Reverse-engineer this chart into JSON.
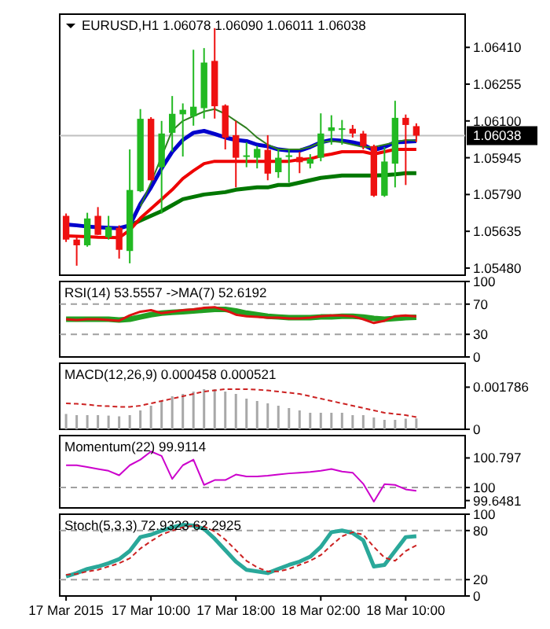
{
  "chart_data": [
    {
      "type": "candlestick",
      "title": "EURUSD,H1 1.06078 1.06090 1.06011 1.06038",
      "tick_labels": "y",
      "xlim": [
        "2015-03-17T01:24",
        "2015-03-18T15:36"
      ],
      "ylim": [
        1.0545,
        1.0655
      ],
      "yticks": [
        {
          "value": 1.0548,
          "label": "1.05480"
        },
        {
          "value": 1.05635,
          "label": "1.05635"
        },
        {
          "value": 1.0579,
          "label": "1.05790"
        },
        {
          "value": 1.05945,
          "label": "1.05945"
        },
        {
          "value": 1.061,
          "label": "1.06100"
        },
        {
          "value": 1.06255,
          "label": "1.06255"
        },
        {
          "value": 1.0641,
          "label": "1.06410"
        }
      ],
      "ref_lines": [
        {
          "axis": "y",
          "value": 1.06038,
          "label": "1.06038",
          "color": "#c0c0c0"
        }
      ],
      "x": [
        "2015-03-17T02:00",
        "2015-03-17T03:00",
        "2015-03-17T04:00",
        "2015-03-17T05:00",
        "2015-03-17T06:00",
        "2015-03-17T07:00",
        "2015-03-17T08:00",
        "2015-03-17T09:00",
        "2015-03-17T10:00",
        "2015-03-17T11:00",
        "2015-03-17T12:00",
        "2015-03-17T13:00",
        "2015-03-17T14:00",
        "2015-03-17T15:00",
        "2015-03-17T16:00",
        "2015-03-17T17:00",
        "2015-03-17T18:00",
        "2015-03-17T19:00",
        "2015-03-17T20:00",
        "2015-03-17T21:00",
        "2015-03-17T22:00",
        "2015-03-17T23:00",
        "2015-03-18T00:00",
        "2015-03-18T01:00",
        "2015-03-18T02:00",
        "2015-03-18T03:00",
        "2015-03-18T04:00",
        "2015-03-18T05:00",
        "2015-03-18T06:00",
        "2015-03-18T07:00",
        "2015-03-18T08:00",
        "2015-03-18T09:00",
        "2015-03-18T10:00",
        "2015-03-18T11:00"
      ],
      "ohlc": [
        [
          1.057,
          1.0571,
          1.0559,
          1.056
        ],
        [
          1.056,
          1.0561,
          1.0549,
          1.05576
        ],
        [
          1.05576,
          1.05713,
          1.0557,
          1.05689
        ],
        [
          1.057,
          1.05737,
          1.0562,
          1.0562
        ],
        [
          1.0561,
          1.057,
          1.056,
          1.05653
        ],
        [
          1.0565,
          1.0566,
          1.0552,
          1.05557
        ],
        [
          1.05552,
          1.0598,
          1.055,
          1.05809
        ],
        [
          1.05804,
          1.0615,
          1.058,
          1.06109
        ],
        [
          1.06109,
          1.06116,
          1.0585,
          1.0585
        ],
        [
          1.05905,
          1.061,
          1.0571,
          1.06047
        ],
        [
          1.0605,
          1.06205,
          1.0597,
          1.0613
        ],
        [
          1.06128,
          1.06174,
          1.0595,
          1.06147
        ],
        [
          1.0612,
          1.064,
          1.0608,
          1.0616
        ],
        [
          1.06154,
          1.06407,
          1.0611,
          1.06346
        ],
        [
          1.06353,
          1.06491,
          1.0611,
          1.06162
        ],
        [
          1.06165,
          1.0617,
          1.0598,
          1.0603
        ],
        [
          1.0604,
          1.061,
          1.0582,
          1.05945
        ],
        [
          1.0595,
          1.0601,
          1.05905,
          1.05955
        ],
        [
          1.05945,
          1.05995,
          1.059,
          1.05982
        ],
        [
          1.05978,
          1.0604,
          1.0585,
          1.05878
        ],
        [
          1.05884,
          1.0598,
          1.0586,
          1.05945
        ],
        [
          1.0595,
          1.0598,
          1.0584,
          1.05955
        ],
        [
          1.05948,
          1.0597,
          1.0588,
          1.05926
        ],
        [
          1.0592,
          1.0596,
          1.059,
          1.0594
        ],
        [
          1.05945,
          1.06132,
          1.0593,
          1.06047
        ],
        [
          1.06058,
          1.06124,
          1.06,
          1.06073
        ],
        [
          1.06065,
          1.06104,
          1.06,
          1.06069
        ],
        [
          1.06067,
          1.06083,
          1.0603,
          1.06047
        ],
        [
          1.06047,
          1.06058,
          1.0598,
          1.05994
        ],
        [
          1.05994,
          1.06,
          1.0578,
          1.05785
        ],
        [
          1.05785,
          1.0599,
          1.0578,
          1.05929
        ],
        [
          1.0592,
          1.06185,
          1.0582,
          1.06113
        ],
        [
          1.06113,
          1.06127,
          1.0583,
          1.06083
        ],
        [
          1.06078,
          1.0609,
          1.06011,
          1.06038
        ]
      ],
      "colors": [
        "#ee1111",
        "#ee1111",
        "#22b922",
        "#ee1111",
        "#22b922",
        "#ee1111",
        "#22b922",
        "#22b922",
        "#ee1111",
        "#22b922",
        "#22b922",
        "#22b922",
        "#22b922",
        "#22b922",
        "#ee1111",
        "#ee1111",
        "#ee1111",
        "#22b922",
        "#22b922",
        "#ee1111",
        "#22b922",
        "#22b922",
        "#ee1111",
        "#22b922",
        "#22b922",
        "#22b922",
        "#22b922",
        "#ee1111",
        "#ee1111",
        "#ee1111",
        "#22b922",
        "#22b922",
        "#ee1111",
        "#ee1111"
      ],
      "series": [
        {
          "type": "line",
          "color": "#007700",
          "x": [
            "2015-03-17T08:00",
            "2015-03-17T09:00",
            "2015-03-17T10:00",
            "2015-03-17T11:00",
            "2015-03-17T12:00",
            "2015-03-17T13:00",
            "2015-03-17T14:00",
            "2015-03-17T15:00",
            "2015-03-17T16:00",
            "2015-03-17T17:00",
            "2015-03-17T18:00",
            "2015-03-17T19:00",
            "2015-03-17T20:00",
            "2015-03-17T21:00",
            "2015-03-17T22:00",
            "2015-03-17T23:00",
            "2015-03-18T00:00",
            "2015-03-18T01:00",
            "2015-03-18T02:00",
            "2015-03-18T03:00",
            "2015-03-18T04:00",
            "2015-03-18T05:00",
            "2015-03-18T06:00",
            "2015-03-18T07:00",
            "2015-03-18T08:00",
            "2015-03-18T09:00",
            "2015-03-18T10:00",
            "2015-03-18T11:00"
          ],
          "values": [
            1.0566,
            1.0568,
            1.057,
            1.0572,
            1.05745,
            1.0577,
            1.0578,
            1.0579,
            1.05795,
            1.058,
            1.0581,
            1.05815,
            1.0582,
            1.0582,
            1.0583,
            1.0583,
            1.0584,
            1.0585,
            1.0586,
            1.05865,
            1.0587,
            1.0587,
            1.0587,
            1.0587,
            1.05872,
            1.05875,
            1.0588,
            1.0588
          ]
        },
        {
          "type": "line",
          "color": "#ee0000",
          "values": [
            1.05616,
            1.05614,
            1.05612,
            1.0561,
            1.05609,
            1.05608,
            1.0564,
            1.0569,
            1.0573,
            1.0577,
            1.0581,
            1.05857,
            1.0589,
            1.0592,
            1.0593,
            1.0593,
            1.0593,
            1.0593,
            1.0593,
            1.0593,
            1.0593,
            1.0593,
            1.05937,
            1.0594,
            1.05953,
            1.0596,
            1.0597,
            1.0597,
            1.0597,
            1.0596,
            1.0597,
            1.0598,
            1.0598,
            1.0598
          ]
        },
        {
          "type": "line",
          "color": "#0000cc",
          "values": [
            1.05664,
            1.0566,
            1.05655,
            1.05652,
            1.0565,
            1.05648,
            1.0566,
            1.0575,
            1.0582,
            1.059,
            1.0597,
            1.0602,
            1.0605,
            1.06058,
            1.06045,
            1.0603,
            1.0602,
            1.06015,
            1.06,
            1.05993,
            1.0598,
            1.05975,
            1.05975,
            1.0599,
            1.0601,
            1.0602,
            1.06017,
            1.0601,
            1.06,
            1.05977,
            1.0599,
            1.0601,
            1.06012,
            1.06015
          ]
        },
        {
          "type": "line",
          "color": "#2f7f1f",
          "x": [
            "2015-03-17T09:00",
            "2015-03-17T10:00",
            "2015-03-17T11:00",
            "2015-03-17T12:00",
            "2015-03-17T13:00",
            "2015-03-17T14:00",
            "2015-03-17T15:00",
            "2015-03-17T16:00",
            "2015-03-17T17:00",
            "2015-03-17T18:00",
            "2015-03-17T19:00",
            "2015-03-17T20:00",
            "2015-03-17T21:00",
            "2015-03-17T22:00",
            "2015-03-17T23:00",
            "2015-03-18T00:00",
            "2015-03-18T01:00",
            "2015-03-18T02:00",
            "2015-03-18T03:00",
            "2015-03-18T04:00",
            "2015-03-18T05:00",
            "2015-03-18T06:00",
            "2015-03-18T07:00",
            "2015-03-18T08:00",
            "2015-03-18T09:00",
            "2015-03-18T10:00",
            "2015-03-18T11:00"
          ],
          "values": [
            1.0574,
            1.0584,
            1.0595,
            1.0606,
            1.061,
            1.0612,
            1.0614,
            1.0615,
            1.0613,
            1.061,
            1.0607,
            1.0603,
            1.06,
            1.0598,
            1.0598,
            1.0598,
            1.0599,
            1.0601,
            1.06015,
            1.0601,
            1.06,
            1.0599,
            1.0599,
            1.06,
            1.0601,
            1.0602,
            1.06017
          ]
        }
      ]
    },
    {
      "type": "line",
      "title": "RSI(14) 53.5557 ->MA(7) 52.6192",
      "tick_labels": "y",
      "xlim": [
        "2015-03-17T01:24",
        "2015-03-18T15:36"
      ],
      "ylim": [
        0,
        100
      ],
      "yticks": [
        0,
        30,
        70,
        100
      ],
      "ref_lines": [
        {
          "axis": "y",
          "value": 70,
          "color": "#a0a0a0",
          "line_style": "dashed"
        },
        {
          "axis": "y",
          "value": 30,
          "color": "#a0a0a0",
          "line_style": "dashed"
        }
      ],
      "x": [
        "2015-03-17T02:00",
        "2015-03-17T03:00",
        "2015-03-17T04:00",
        "2015-03-17T05:00",
        "2015-03-17T06:00",
        "2015-03-17T07:00",
        "2015-03-17T08:00",
        "2015-03-17T09:00",
        "2015-03-17T10:00",
        "2015-03-17T11:00",
        "2015-03-17T12:00",
        "2015-03-17T13:00",
        "2015-03-17T14:00",
        "2015-03-17T15:00",
        "2015-03-17T16:00",
        "2015-03-17T17:00",
        "2015-03-17T18:00",
        "2015-03-17T19:00",
        "2015-03-17T20:00",
        "2015-03-17T21:00",
        "2015-03-17T22:00",
        "2015-03-17T23:00",
        "2015-03-18T00:00",
        "2015-03-18T01:00",
        "2015-03-18T02:00",
        "2015-03-18T03:00",
        "2015-03-18T04:00",
        "2015-03-18T05:00",
        "2015-03-18T06:00",
        "2015-03-18T07:00",
        "2015-03-18T08:00",
        "2015-03-18T09:00",
        "2015-03-18T10:00",
        "2015-03-18T11:00"
      ],
      "series": [
        {
          "color": "#22a022",
          "values": [
            50,
            50,
            50,
            50,
            50,
            49,
            50,
            53,
            56,
            58,
            59,
            60,
            61,
            62,
            63,
            63,
            61,
            58,
            56,
            54,
            53,
            52,
            52,
            52,
            53,
            53,
            54,
            54,
            53,
            51,
            50,
            51,
            52,
            52.6
          ]
        },
        {
          "color": "#dd1111",
          "values": [
            50,
            49,
            50,
            50,
            49,
            48,
            55,
            60,
            62,
            58,
            60,
            62,
            63,
            65,
            66,
            62,
            56,
            54,
            53,
            52,
            52,
            51,
            51,
            52,
            54,
            55,
            55,
            54,
            50,
            45,
            48,
            54,
            55,
            53.6
          ]
        }
      ]
    },
    {
      "type": "bar",
      "title": "MACD(12,26,9) 0.000458 0.000521",
      "tick_labels": "y",
      "xlim": [
        "2015-03-17T01:24",
        "2015-03-18T15:36"
      ],
      "ylim": [
        0,
        0.0028
      ],
      "yticks": [
        0,
        0.001786
      ],
      "x": [
        "2015-03-17T02:00",
        "2015-03-17T03:00",
        "2015-03-17T04:00",
        "2015-03-17T05:00",
        "2015-03-17T06:00",
        "2015-03-17T07:00",
        "2015-03-17T08:00",
        "2015-03-17T09:00",
        "2015-03-17T10:00",
        "2015-03-17T11:00",
        "2015-03-17T12:00",
        "2015-03-17T13:00",
        "2015-03-17T14:00",
        "2015-03-17T15:00",
        "2015-03-17T16:00",
        "2015-03-17T17:00",
        "2015-03-17T18:00",
        "2015-03-17T19:00",
        "2015-03-17T20:00",
        "2015-03-17T21:00",
        "2015-03-17T22:00",
        "2015-03-17T23:00",
        "2015-03-18T00:00",
        "2015-03-18T01:00",
        "2015-03-18T02:00",
        "2015-03-18T03:00",
        "2015-03-18T04:00",
        "2015-03-18T05:00",
        "2015-03-18T06:00",
        "2015-03-18T07:00",
        "2015-03-18T08:00",
        "2015-03-18T09:00",
        "2015-03-18T10:00",
        "2015-03-18T11:00"
      ],
      "series": [
        {
          "type": "bar",
          "color": "#a8a8a8",
          "values": [
            0.00065,
            0.0006,
            0.0006,
            0.0006,
            0.00058,
            0.00055,
            0.0006,
            0.0008,
            0.001,
            0.0012,
            0.0014,
            0.0015,
            0.0016,
            0.0017,
            0.0017,
            0.0016,
            0.0015,
            0.0013,
            0.0012,
            0.0011,
            0.001,
            0.0009,
            0.0008,
            0.0007,
            0.0007,
            0.0007,
            0.0007,
            0.0006,
            0.0006,
            0.0005,
            0.0004,
            0.0004,
            0.00045,
            0.00046
          ]
        },
        {
          "type": "line",
          "color": "#cc2222",
          "line_style": "dashed",
          "values": [
            0.0011,
            0.00108,
            0.00105,
            0.001,
            0.00098,
            0.00095,
            0.00095,
            0.001,
            0.0011,
            0.0012,
            0.0013,
            0.0014,
            0.0015,
            0.0016,
            0.00165,
            0.0017,
            0.0017,
            0.0017,
            0.00168,
            0.00165,
            0.0016,
            0.00155,
            0.0015,
            0.0014,
            0.0013,
            0.0012,
            0.0011,
            0.001,
            0.0009,
            0.0008,
            0.0007,
            0.00065,
            0.0006,
            0.00052
          ]
        }
      ]
    },
    {
      "type": "line",
      "title": "Momentum(22) 99.9114",
      "tick_labels": "y",
      "xlim": [
        "2015-03-17T01:24",
        "2015-03-18T15:36"
      ],
      "ylim": [
        99.45,
        101.4
      ],
      "yticks": [
        99.6481,
        100,
        100.797
      ],
      "ref_lines": [
        {
          "axis": "y",
          "value": 100,
          "color": "#a0a0a0",
          "line_style": "dashed"
        }
      ],
      "x": [
        "2015-03-17T02:00",
        "2015-03-17T03:00",
        "2015-03-17T04:00",
        "2015-03-17T05:00",
        "2015-03-17T06:00",
        "2015-03-17T07:00",
        "2015-03-17T08:00",
        "2015-03-17T09:00",
        "2015-03-17T10:00",
        "2015-03-17T11:00",
        "2015-03-17T12:00",
        "2015-03-17T13:00",
        "2015-03-17T14:00",
        "2015-03-17T15:00",
        "2015-03-17T16:00",
        "2015-03-17T17:00",
        "2015-03-17T18:00",
        "2015-03-17T19:00",
        "2015-03-17T20:00",
        "2015-03-17T21:00",
        "2015-03-17T22:00",
        "2015-03-17T23:00",
        "2015-03-18T00:00",
        "2015-03-18T01:00",
        "2015-03-18T02:00",
        "2015-03-18T03:00",
        "2015-03-18T04:00",
        "2015-03-18T05:00",
        "2015-03-18T06:00",
        "2015-03-18T07:00",
        "2015-03-18T08:00",
        "2015-03-18T09:00",
        "2015-03-18T10:00",
        "2015-03-18T11:00"
      ],
      "series": [
        {
          "color": "#cc00cc",
          "values": [
            100.6,
            100.6,
            100.55,
            100.5,
            100.45,
            100.33,
            100.6,
            100.75,
            100.97,
            100.85,
            100.23,
            100.6,
            100.75,
            100.07,
            100.2,
            100.2,
            100.35,
            100.3,
            100.3,
            100.32,
            100.35,
            100.38,
            100.4,
            100.42,
            100.45,
            100.5,
            100.43,
            100.4,
            100.1,
            99.62,
            100.09,
            100.07,
            99.95,
            99.91
          ]
        }
      ]
    },
    {
      "type": "line",
      "title": "Stoch(5,3,3) 72.9323 62.2925",
      "xlim": [
        "2015-03-17T01:24",
        "2015-03-18T15:36"
      ],
      "ylim": [
        0,
        100
      ],
      "yticks": [
        0,
        20,
        80,
        100
      ],
      "xticks": [
        {
          "value": "2015-03-17T02:00",
          "label": "17 Mar 2015"
        },
        {
          "value": "2015-03-17T10:00",
          "label": "17 Mar 10:00"
        },
        {
          "value": "2015-03-17T18:00",
          "label": "17 Mar 18:00"
        },
        {
          "value": "2015-03-18T02:00",
          "label": "18 Mar 02:00"
        },
        {
          "value": "2015-03-18T10:00",
          "label": "18 Mar 10:00"
        }
      ],
      "ref_lines": [
        {
          "axis": "y",
          "value": 80,
          "color": "#a0a0a0",
          "line_style": "dashed"
        },
        {
          "axis": "y",
          "value": 20,
          "color": "#a0a0a0",
          "line_style": "dashed"
        }
      ],
      "x": [
        "2015-03-17T02:00",
        "2015-03-17T03:00",
        "2015-03-17T04:00",
        "2015-03-17T05:00",
        "2015-03-17T06:00",
        "2015-03-17T07:00",
        "2015-03-17T08:00",
        "2015-03-17T09:00",
        "2015-03-17T10:00",
        "2015-03-17T11:00",
        "2015-03-17T12:00",
        "2015-03-17T13:00",
        "2015-03-17T14:00",
        "2015-03-17T15:00",
        "2015-03-17T16:00",
        "2015-03-17T17:00",
        "2015-03-17T18:00",
        "2015-03-17T19:00",
        "2015-03-17T20:00",
        "2015-03-17T21:00",
        "2015-03-17T22:00",
        "2015-03-17T23:00",
        "2015-03-18T00:00",
        "2015-03-18T01:00",
        "2015-03-18T02:00",
        "2015-03-18T03:00",
        "2015-03-18T04:00",
        "2015-03-18T05:00",
        "2015-03-18T06:00",
        "2015-03-18T07:00",
        "2015-03-18T08:00",
        "2015-03-18T09:00",
        "2015-03-18T10:00",
        "2015-03-18T11:00"
      ],
      "series": [
        {
          "color": "#2aa89a",
          "values": [
            24,
            28,
            33,
            36,
            40,
            45,
            55,
            72,
            75,
            80,
            84,
            87,
            86,
            82,
            70,
            56,
            42,
            32,
            30,
            28,
            33,
            38,
            42,
            48,
            60,
            78,
            80,
            77,
            68,
            36,
            38,
            55,
            72,
            73
          ]
        },
        {
          "color": "#cc2222",
          "line_style": "dashed",
          "values": [
            26,
            27,
            30,
            32,
            36,
            40,
            46,
            58,
            67,
            75,
            80,
            84,
            86,
            85,
            79,
            69,
            56,
            43,
            35,
            30,
            30,
            33,
            38,
            43,
            50,
            62,
            73,
            78,
            75,
            60,
            47,
            43,
            55,
            62
          ]
        }
      ]
    }
  ]
}
